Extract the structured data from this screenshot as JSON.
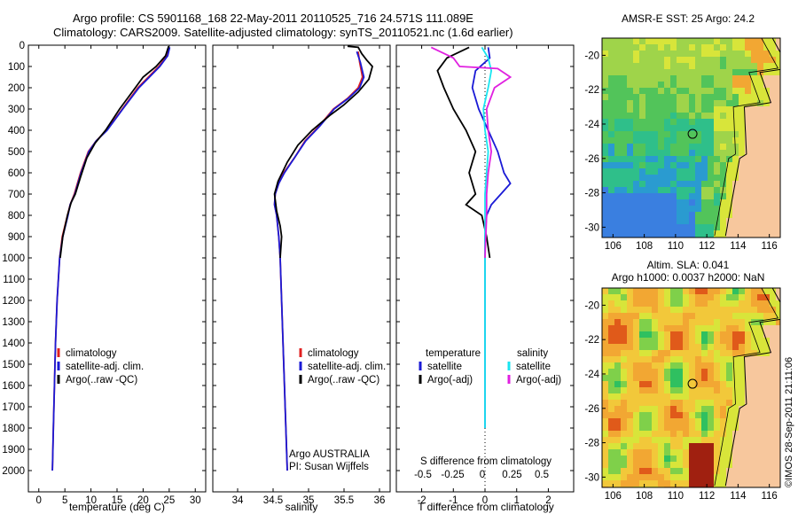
{
  "header": {
    "line1": "Argo profile: CS 5901168_168 22-May-2011 20110525_716 24.571S 111.089E",
    "line2": "Climatology: CARS2009. Satellite-adjusted climatology: synTS_20110521.nc (1.6d earlier)"
  },
  "colors": {
    "climatology": "#e02020",
    "satellite": "#1a1ad6",
    "argo": "#000000",
    "sat_salinity": "#19e5f0",
    "argo_salinity": "#e020e0"
  },
  "chart_data": [
    {
      "id": "temperature",
      "type": "line",
      "xlabel": "temperature (deg C)",
      "ylabel": "",
      "xlim": [
        -2,
        32
      ],
      "ylim": [
        2100,
        0
      ],
      "xticks": [
        0,
        5,
        10,
        15,
        20,
        25,
        30
      ],
      "yticks": [
        0,
        100,
        200,
        300,
        400,
        500,
        600,
        700,
        800,
        900,
        1000,
        1100,
        1200,
        1300,
        1400,
        1500,
        1600,
        1700,
        1800,
        1900,
        2000
      ],
      "legend": [
        "climatology",
        "satellite-adj. clim.",
        "Argo(..raw -QC)"
      ],
      "series": [
        {
          "name": "climatology",
          "color": "#e02020",
          "points": [
            [
              25,
              10
            ],
            [
              24.6,
              50
            ],
            [
              23,
              100
            ],
            [
              21,
              150
            ],
            [
              19,
              200
            ],
            [
              16,
              300
            ],
            [
              13,
              400
            ],
            [
              11,
              450
            ],
            [
              9.5,
              500
            ],
            [
              8,
              600
            ],
            [
              6.8,
              700
            ],
            [
              6,
              750
            ],
            [
              5.5,
              800
            ],
            [
              4.5,
              900
            ],
            [
              4,
              1000
            ],
            [
              3.5,
              1200
            ],
            [
              3.2,
              1400
            ],
            [
              3,
              1600
            ],
            [
              2.8,
              1800
            ],
            [
              2.6,
              2000
            ]
          ]
        },
        {
          "name": "satellite-adj. clim.",
          "color": "#1a1ad6",
          "points": [
            [
              25.1,
              10
            ],
            [
              24.7,
              50
            ],
            [
              23.2,
              100
            ],
            [
              21.2,
              150
            ],
            [
              19.2,
              200
            ],
            [
              16.1,
              300
            ],
            [
              13.1,
              400
            ],
            [
              11,
              450
            ],
            [
              9.6,
              500
            ],
            [
              8.1,
              600
            ],
            [
              6.9,
              700
            ],
            [
              6,
              750
            ],
            [
              5.6,
              800
            ],
            [
              4.6,
              900
            ],
            [
              4,
              1000
            ],
            [
              3.5,
              1200
            ],
            [
              3.2,
              1400
            ],
            [
              3,
              1600
            ],
            [
              2.8,
              1800
            ],
            [
              2.6,
              2000
            ]
          ]
        },
        {
          "name": "Argo(..raw -QC)",
          "color": "#000000",
          "points": [
            [
              24.9,
              5
            ],
            [
              24.3,
              50
            ],
            [
              22.5,
              100
            ],
            [
              20,
              150
            ],
            [
              18.5,
              200
            ],
            [
              15.5,
              300
            ],
            [
              12.8,
              400
            ],
            [
              10.8,
              460
            ],
            [
              9.2,
              530
            ],
            [
              8,
              620
            ],
            [
              7,
              700
            ],
            [
              6.2,
              740
            ],
            [
              5.5,
              800
            ],
            [
              4.6,
              900
            ],
            [
              4.1,
              1000
            ]
          ]
        }
      ]
    },
    {
      "id": "salinity",
      "type": "line",
      "xlabel": "salinity",
      "ylabel": "",
      "xlim": [
        33.65,
        36.15
      ],
      "ylim": [
        2100,
        0
      ],
      "xticks": [
        34,
        34.5,
        35,
        35.5,
        36
      ],
      "legend": [
        "climatology",
        "satellite-adj. clim.",
        "Argo(..raw -QC)"
      ],
      "annotation": [
        "Argo AUSTRALIA",
        "PI: Susan Wijffels"
      ],
      "series": [
        {
          "name": "climatology",
          "color": "#e02020",
          "points": [
            [
              35.7,
              30
            ],
            [
              35.72,
              80
            ],
            [
              35.76,
              150
            ],
            [
              35.7,
              200
            ],
            [
              35.55,
              250
            ],
            [
              35.35,
              300
            ],
            [
              35.15,
              380
            ],
            [
              34.95,
              450
            ],
            [
              34.8,
              530
            ],
            [
              34.65,
              600
            ],
            [
              34.58,
              650
            ],
            [
              34.53,
              700
            ],
            [
              34.52,
              750
            ],
            [
              34.55,
              800
            ],
            [
              34.58,
              900
            ],
            [
              34.6,
              1000
            ],
            [
              34.62,
              1200
            ],
            [
              34.64,
              1400
            ],
            [
              34.66,
              1600
            ],
            [
              34.68,
              1800
            ],
            [
              34.7,
              2000
            ]
          ]
        },
        {
          "name": "satellite-adj. clim.",
          "color": "#1a1ad6",
          "points": [
            [
              35.68,
              30
            ],
            [
              35.73,
              80
            ],
            [
              35.78,
              150
            ],
            [
              35.72,
              200
            ],
            [
              35.56,
              250
            ],
            [
              35.36,
              300
            ],
            [
              35.16,
              380
            ],
            [
              34.96,
              450
            ],
            [
              34.8,
              530
            ],
            [
              34.66,
              600
            ],
            [
              34.58,
              650
            ],
            [
              34.53,
              700
            ],
            [
              34.52,
              750
            ],
            [
              34.55,
              800
            ],
            [
              34.58,
              900
            ],
            [
              34.6,
              1000
            ],
            [
              34.62,
              1200
            ],
            [
              34.64,
              1400
            ],
            [
              34.66,
              1600
            ],
            [
              34.68,
              1800
            ],
            [
              34.7,
              2000
            ]
          ]
        },
        {
          "name": "Argo(..raw -QC)",
          "color": "#000000",
          "points": [
            [
              35.55,
              5
            ],
            [
              35.7,
              10
            ],
            [
              35.75,
              40
            ],
            [
              35.82,
              70
            ],
            [
              35.9,
              100
            ],
            [
              35.85,
              160
            ],
            [
              35.7,
              220
            ],
            [
              35.5,
              280
            ],
            [
              35.3,
              330
            ],
            [
              35.05,
              400
            ],
            [
              34.85,
              470
            ],
            [
              34.7,
              550
            ],
            [
              34.57,
              640
            ],
            [
              34.52,
              700
            ],
            [
              34.55,
              780
            ],
            [
              34.6,
              850
            ],
            [
              34.62,
              900
            ],
            [
              34.6,
              1000
            ]
          ]
        }
      ]
    },
    {
      "id": "difference",
      "type": "line",
      "xlabel": "T difference from climatology",
      "top_label": "S difference from climatology",
      "xlim": [
        -2.8,
        2.8
      ],
      "ylim": [
        2100,
        0
      ],
      "xticks": [
        -2,
        -1,
        0,
        1,
        2
      ],
      "top_ticks": [
        "-0.5",
        "-0.25",
        "0",
        "0.25",
        "0.5"
      ],
      "legend_left_title": "temperature",
      "legend_right_title": "salinity",
      "legend": [
        "satellite",
        "Argo(-adj)",
        "satellite",
        "Argo(-adj)"
      ],
      "series": [
        {
          "name": "temperature satellite",
          "color": "#1a1ad6",
          "points": [
            [
              0.1,
              10
            ],
            [
              0.15,
              60
            ],
            [
              -0.3,
              120
            ],
            [
              -0.4,
              200
            ],
            [
              -0.2,
              300
            ],
            [
              0.1,
              400
            ],
            [
              0.4,
              500
            ],
            [
              0.6,
              600
            ],
            [
              0.8,
              650
            ],
            [
              0.5,
              700
            ],
            [
              0.2,
              750
            ],
            [
              0.05,
              800
            ],
            [
              0,
              900
            ],
            [
              0,
              1800
            ]
          ]
        },
        {
          "name": "temperature Argo(-adj)",
          "color": "#000000",
          "points": [
            [
              -0.5,
              10
            ],
            [
              -1.2,
              60
            ],
            [
              -1.5,
              120
            ],
            [
              -1.3,
              200
            ],
            [
              -1.0,
              300
            ],
            [
              -0.6,
              400
            ],
            [
              -0.3,
              500
            ],
            [
              -0.5,
              600
            ],
            [
              -0.3,
              700
            ],
            [
              -0.6,
              750
            ],
            [
              -0.1,
              800
            ],
            [
              0.05,
              900
            ],
            [
              0.15,
              1000
            ]
          ]
        },
        {
          "name": "salinity satellite",
          "color": "#19e5f0",
          "points": [
            [
              -0.1,
              10
            ],
            [
              0.1,
              60
            ],
            [
              0.2,
              120
            ],
            [
              0.1,
              200
            ],
            [
              -0.05,
              300
            ],
            [
              0,
              400
            ],
            [
              0.1,
              500
            ],
            [
              0.05,
              600
            ],
            [
              0,
              700
            ],
            [
              0,
              800
            ],
            [
              0,
              1000
            ],
            [
              0,
              1400
            ],
            [
              0,
              1800
            ]
          ]
        },
        {
          "name": "salinity Argo(-adj)",
          "color": "#e020e0",
          "points": [
            [
              -1.7,
              10
            ],
            [
              -1.0,
              60
            ],
            [
              -0.8,
              100
            ],
            [
              0.4,
              110
            ],
            [
              0.8,
              150
            ],
            [
              0.3,
              200
            ],
            [
              0.05,
              300
            ],
            [
              0.1,
              400
            ],
            [
              0.2,
              500
            ],
            [
              0.1,
              600
            ],
            [
              0.05,
              700
            ],
            [
              0.05,
              800
            ],
            [
              0,
              1000
            ]
          ]
        }
      ]
    },
    {
      "id": "sst_map",
      "type": "heatmap",
      "title": "AMSR-E SST: 25 Argo: 24.2",
      "xticks": [
        106,
        108,
        110,
        112,
        114,
        116
      ],
      "yticks": [
        -20,
        -22,
        -24,
        -26,
        -28,
        -30
      ],
      "xlim": [
        105.3,
        116.7
      ],
      "ylim": [
        -30.6,
        -19
      ]
    },
    {
      "id": "sla_map",
      "type": "heatmap",
      "title_line1": "Altim. SLA: 0.041",
      "title_line2": "Argo h1000: 0.0037 h2000: NaN",
      "xticks": [
        106,
        108,
        110,
        112,
        114,
        116
      ],
      "yticks": [
        -20,
        -22,
        -24,
        -26,
        -28,
        -30
      ],
      "xlim": [
        105.3,
        116.7
      ],
      "ylim": [
        -30.6,
        -19
      ]
    }
  ],
  "watermark": "©IMOS 28-Sep-2011 21:11:06"
}
